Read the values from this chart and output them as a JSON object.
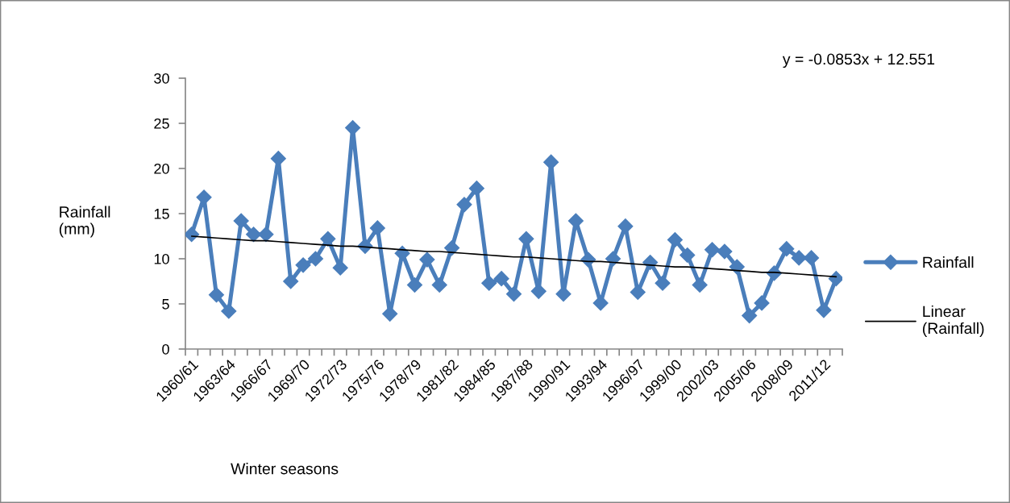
{
  "chart_data": {
    "type": "line",
    "ylabel": "Rainfall (mm)",
    "xlabel": "Winter seasons",
    "annotations": [
      "y = -0.0853x + 12.551"
    ],
    "categories": [
      "1960/61",
      null,
      null,
      "1963/64",
      null,
      null,
      "1966/67",
      null,
      null,
      "1969/70",
      null,
      null,
      "1972/73",
      null,
      null,
      "1975/76",
      null,
      null,
      "1978/79",
      null,
      null,
      "1981/82",
      null,
      null,
      "1984/85",
      null,
      null,
      "1987/88",
      null,
      null,
      "1990/91",
      null,
      null,
      "1993/94",
      null,
      null,
      "1996/97",
      null,
      null,
      "1999/00",
      null,
      null,
      "2002/03",
      null,
      null,
      "2005/06",
      null,
      null,
      "2008/09",
      null,
      null,
      "2011/12",
      null
    ],
    "ylim": [
      0,
      30
    ],
    "yticks": [
      0,
      5,
      10,
      15,
      20,
      25,
      30
    ],
    "grid": false,
    "legend": "right",
    "series": [
      {
        "name": "Rainfall",
        "color": "#4a7ebb",
        "marker": "diamond",
        "line_style": "solid",
        "values": [
          12.7,
          16.8,
          6.0,
          4.2,
          14.2,
          12.7,
          12.7,
          21.1,
          7.5,
          9.3,
          10.0,
          12.2,
          9.0,
          24.5,
          11.4,
          13.4,
          3.9,
          10.6,
          7.1,
          9.9,
          7.1,
          11.2,
          16.0,
          17.8,
          7.3,
          7.8,
          6.1,
          12.2,
          6.4,
          20.7,
          6.1,
          14.2,
          9.9,
          5.1,
          10.0,
          13.6,
          6.3,
          9.6,
          7.3,
          12.1,
          10.4,
          7.1,
          11.0,
          10.8,
          9.1,
          3.7,
          5.1,
          8.4,
          11.1,
          10.1,
          10.1,
          4.3,
          7.8
        ]
      },
      {
        "name": "Linear (Rainfall)",
        "type": "line",
        "color": "#000000",
        "marker": "none",
        "line_style": "solid",
        "values": [
          12.5,
          12.4,
          12.3,
          12.2,
          12.1,
          12.0,
          12.0,
          11.9,
          11.8,
          11.7,
          11.6,
          11.5,
          11.4,
          11.4,
          11.3,
          11.2,
          11.1,
          11.0,
          10.9,
          10.8,
          10.8,
          10.7,
          10.6,
          10.5,
          10.4,
          10.3,
          10.2,
          10.2,
          10.1,
          10.0,
          9.9,
          9.8,
          9.7,
          9.7,
          9.6,
          9.5,
          9.4,
          9.3,
          9.2,
          9.1,
          9.1,
          9.0,
          8.9,
          8.8,
          8.7,
          8.6,
          8.5,
          8.5,
          8.4,
          8.3,
          8.2,
          8.1,
          8.0
        ]
      }
    ]
  }
}
